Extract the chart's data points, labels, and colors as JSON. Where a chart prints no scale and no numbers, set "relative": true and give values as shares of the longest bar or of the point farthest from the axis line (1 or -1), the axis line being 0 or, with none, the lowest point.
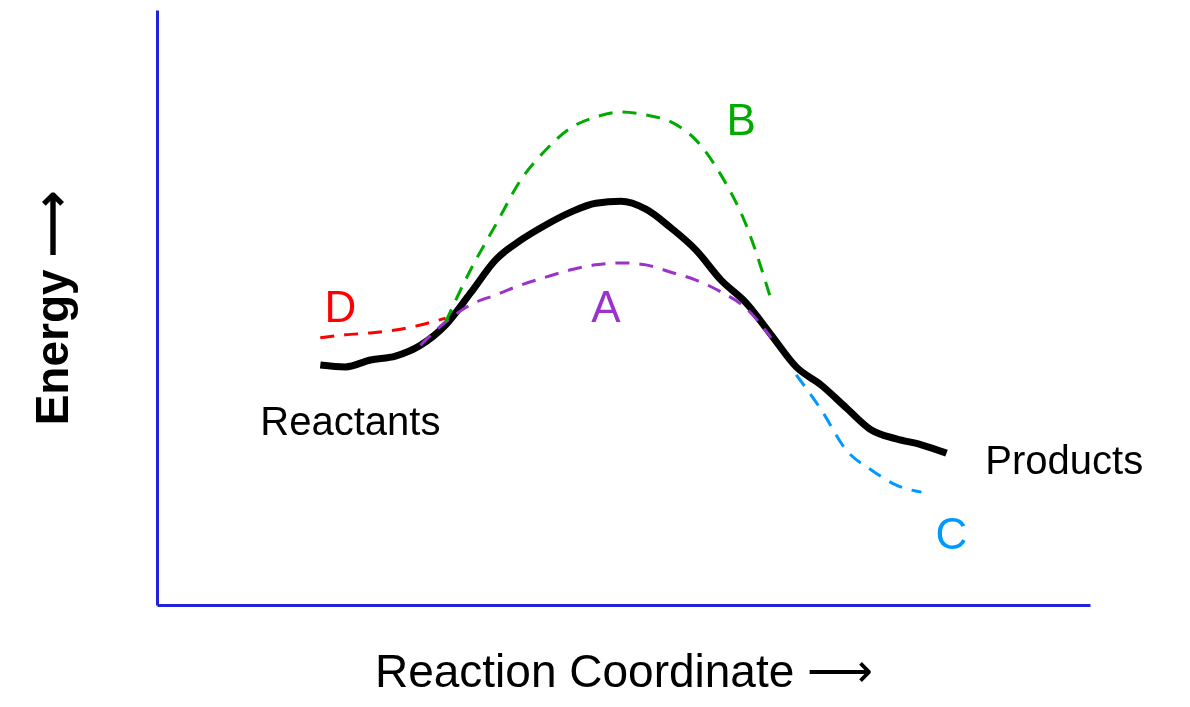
{
  "chart_data": {
    "type": "line",
    "relative": true,
    "xlabel": "Reaction    Coordinate  ⟶",
    "ylabel": "Energy ⟶",
    "categories": [
      null,
      null,
      null,
      null,
      null,
      null,
      null,
      null,
      null,
      null,
      null,
      null,
      null,
      null,
      null,
      null,
      null,
      null,
      null,
      null,
      null,
      null,
      null,
      null,
      null,
      null,
      null,
      null,
      null,
      null,
      null,
      null,
      null,
      null,
      null,
      null,
      null
    ],
    "series": [
      {
        "color": "#000000",
        "line_style": "solid",
        "values": [
          null,
          null,
          null,
          null,
          null,
          null,
          0.487,
          0.483,
          0.497,
          0.505,
          0.527,
          0.568,
          0.633,
          0.7,
          0.74,
          0.771,
          0.797,
          0.815,
          0.819,
          0.803,
          0.765,
          0.72,
          0.659,
          0.613,
          0.548,
          0.483,
          0.446,
          0.4,
          0.355,
          0.337,
          0.325,
          0.308,
          null,
          null,
          null,
          null,
          null
        ]
      },
      {
        "name": "A",
        "color": "#9933cc",
        "line_style": "dashed",
        "values": [
          null,
          null,
          null,
          null,
          null,
          null,
          null,
          null,
          null,
          null,
          0.527,
          0.574,
          0.609,
          0.629,
          0.649,
          0.665,
          0.68,
          0.69,
          0.694,
          0.69,
          0.675,
          0.659,
          0.635,
          0.602,
          0.542,
          null,
          null,
          null,
          null,
          null,
          null,
          null,
          null,
          null,
          null,
          null,
          null
        ]
      },
      {
        "name": "B",
        "color": "#00aa00",
        "line_style": "dashed",
        "values": [
          null,
          null,
          null,
          null,
          null,
          null,
          null,
          null,
          null,
          null,
          null,
          0.574,
          0.68,
          0.771,
          0.862,
          0.923,
          0.968,
          0.99,
          1.0,
          0.994,
          0.98,
          0.943,
          0.872,
          0.771,
          0.619,
          null,
          null,
          null,
          null,
          null,
          null,
          null,
          null,
          null,
          null,
          null,
          null
        ]
      },
      {
        "name": "C",
        "color": "#0099ff",
        "line_style": "dashed",
        "values": [
          null,
          null,
          null,
          null,
          null,
          null,
          null,
          null,
          null,
          null,
          null,
          null,
          null,
          null,
          null,
          null,
          null,
          null,
          null,
          null,
          null,
          null,
          null,
          null,
          null,
          0.467,
          0.396,
          0.314,
          0.274,
          0.243,
          0.229,
          null,
          null,
          null,
          null,
          null,
          null
        ]
      },
      {
        "name": "D",
        "color": "#ff0000",
        "line_style": "dashed",
        "values": [
          null,
          null,
          null,
          null,
          null,
          null,
          0.542,
          0.548,
          0.552,
          0.558,
          0.568,
          0.582,
          null,
          null,
          null,
          null,
          null,
          null,
          null,
          null,
          null,
          null,
          null,
          null,
          null,
          null,
          null,
          null,
          null,
          null,
          null,
          null,
          null,
          null,
          null,
          null,
          null
        ]
      }
    ],
    "annotations": [
      "Reactants",
      "Products"
    ]
  }
}
